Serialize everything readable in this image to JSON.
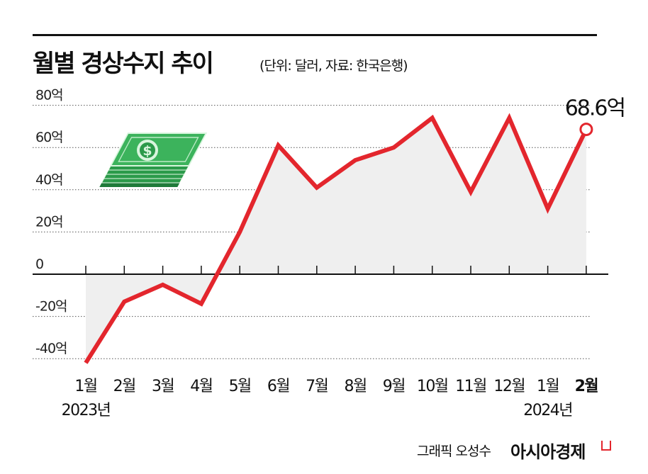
{
  "header": {
    "title": "월별 경상수지 추이",
    "subtitle": "(단위: 달러, 자료: 한국은행)"
  },
  "chart_data": {
    "type": "line",
    "categories": [
      "1월",
      "2월",
      "3월",
      "4월",
      "5월",
      "6월",
      "7월",
      "8월",
      "9월",
      "10월",
      "11월",
      "12월",
      "1월",
      "2월"
    ],
    "year_labels": [
      {
        "index": 0,
        "label": "2023년"
      },
      {
        "index": 12,
        "label": "2024년"
      }
    ],
    "series": [
      {
        "values": [
          -42,
          -13,
          -5,
          -14,
          20,
          61,
          41,
          54,
          60,
          74,
          39,
          74,
          31,
          68.6
        ]
      }
    ],
    "y_ticks": [
      80,
      60,
      40,
      20,
      0,
      -20,
      -40
    ],
    "y_tick_labels": [
      "80억",
      "60억",
      "40억",
      "20억",
      "0",
      "-20억",
      "-40억"
    ],
    "ylim": [
      -42,
      80
    ],
    "grid": true,
    "highlight": {
      "index": 13,
      "label": "68.6억"
    },
    "colors": {
      "line": "#e3262d",
      "area": "#efefef",
      "grid": "#555555",
      "axis": "#111111"
    },
    "icon": "money-stack-icon"
  },
  "footer": {
    "credit": "그래픽 오성수",
    "brand": "아시아경제"
  }
}
